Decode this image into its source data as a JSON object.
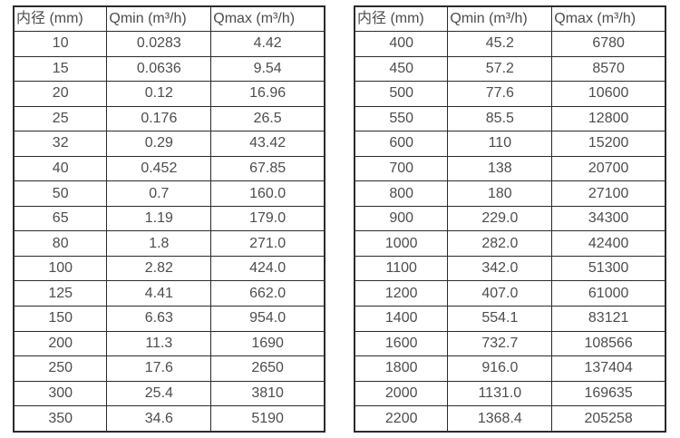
{
  "colors": {
    "background": "#ffffff",
    "grid_border": "#2b2b2b",
    "text": "#4d4d4d"
  },
  "chart_data": [
    {
      "type": "table",
      "title": "",
      "columns": [
        "内径 (mm)",
        "Qmin (m³/h)",
        "Qmax (m³/h)"
      ],
      "rows": [
        [
          "10",
          "0.0283",
          "4.42"
        ],
        [
          "15",
          "0.0636",
          "9.54"
        ],
        [
          "20",
          "0.12",
          "16.96"
        ],
        [
          "25",
          "0.176",
          "26.5"
        ],
        [
          "32",
          "0.29",
          "43.42"
        ],
        [
          "40",
          "0.452",
          "67.85"
        ],
        [
          "50",
          "0.7",
          "160.0"
        ],
        [
          "65",
          "1.19",
          "179.0"
        ],
        [
          "80",
          "1.8",
          "271.0"
        ],
        [
          "100",
          "2.82",
          "424.0"
        ],
        [
          "125",
          "4.41",
          "662.0"
        ],
        [
          "150",
          "6.63",
          "954.0"
        ],
        [
          "200",
          "11.3",
          "1690"
        ],
        [
          "250",
          "17.6",
          "2650"
        ],
        [
          "300",
          "25.4",
          "3810"
        ],
        [
          "350",
          "34.6",
          "5190"
        ]
      ]
    },
    {
      "type": "table",
      "title": "",
      "columns": [
        "内径 (mm)",
        "Qmin (m³/h)",
        "Qmax (m³/h)"
      ],
      "rows": [
        [
          "400",
          "45.2",
          "6780"
        ],
        [
          "450",
          "57.2",
          "8570"
        ],
        [
          "500",
          "77.6",
          "10600"
        ],
        [
          "550",
          "85.5",
          "12800"
        ],
        [
          "600",
          "110",
          "15200"
        ],
        [
          "700",
          "138",
          "20700"
        ],
        [
          "800",
          "180",
          "27100"
        ],
        [
          "900",
          "229.0",
          "34300"
        ],
        [
          "1000",
          "282.0",
          "42400"
        ],
        [
          "1100",
          "342.0",
          "51300"
        ],
        [
          "1200",
          "407.0",
          "61000"
        ],
        [
          "1400",
          "554.1",
          "83121"
        ],
        [
          "1600",
          "732.7",
          "108566"
        ],
        [
          "1800",
          "916.0",
          "137404"
        ],
        [
          "2000",
          "1131.0",
          "169635"
        ],
        [
          "2200",
          "1368.4",
          "205258"
        ]
      ]
    }
  ]
}
